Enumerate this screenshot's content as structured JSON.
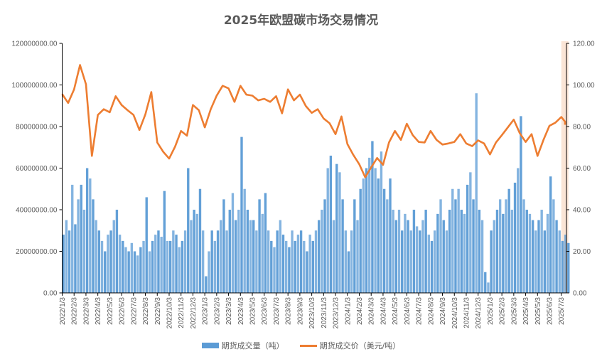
{
  "chart_data": {
    "type": "bar+line",
    "title": "2025年欧盟碳市场交易情况",
    "colors": {
      "volume": "#5b9bd5",
      "price": "#ed7d31",
      "highlight": "#fbe5d6"
    },
    "left_axis": {
      "min": 0,
      "max": 120000000,
      "ticks": [
        "0.00",
        "20000000.00",
        "40000000.00",
        "60000000.00",
        "80000000.00",
        "100000000.00",
        "120000000.00"
      ]
    },
    "right_axis": {
      "min": 0,
      "max": 120,
      "ticks": [
        "0.00",
        "20.00",
        "40.00",
        "60.00",
        "80.00",
        "100.00",
        "120.00"
      ]
    },
    "x_ticks": [
      "2022/1/3",
      "2022/2/3",
      "2022/3/3",
      "2022/4/3",
      "2022/5/3",
      "2022/6/3",
      "2022/7/3",
      "2022/8/3",
      "2022/9/3",
      "2022/10/3",
      "2022/11/3",
      "2022/12/3",
      "2023/1/3",
      "2023/2/3",
      "2023/3/3",
      "2023/4/3",
      "2023/5/3",
      "2023/6/3",
      "2023/7/3",
      "2023/8/3",
      "2023/9/3",
      "2023/10/3",
      "2023/11/3",
      "2023/12/3",
      "2024/1/3",
      "2024/2/3",
      "2024/3/3",
      "2024/4/3",
      "2024/5/3",
      "2024/6/3",
      "2024/7/3",
      "2024/8/3",
      "2024/9/3",
      "2024/10/3",
      "2024/11/3",
      "2024/12/3",
      "2025/1/3",
      "2025/2/3",
      "2025/3/3",
      "2025/4/3",
      "2025/5/3",
      "2025/6/3",
      "2025/7/3"
    ],
    "highlight_range_months": [
      42.0,
      42.6
    ],
    "series": [
      {
        "name": "期货成交量（吨）",
        "type": "bar",
        "axis": "left",
        "points_per_month": 4,
        "unit_multiplier": 1000000,
        "values": [
          28,
          35,
          30,
          52,
          33,
          45,
          52,
          40,
          60,
          55,
          45,
          35,
          30,
          25,
          20,
          28,
          30,
          35,
          40,
          28,
          25,
          22,
          20,
          24,
          20,
          18,
          22,
          25,
          46,
          20,
          25,
          28,
          30,
          27,
          49,
          25,
          25,
          30,
          28,
          22,
          25,
          30,
          60,
          35,
          40,
          38,
          50,
          30,
          8,
          20,
          30,
          25,
          30,
          35,
          45,
          30,
          40,
          48,
          35,
          40,
          75,
          50,
          40,
          35,
          35,
          30,
          45,
          38,
          48,
          30,
          25,
          22,
          30,
          35,
          28,
          25,
          22,
          30,
          25,
          28,
          30,
          25,
          20,
          28,
          25,
          30,
          35,
          40,
          45,
          60,
          66,
          35,
          62,
          58,
          45,
          30,
          20,
          30,
          45,
          35,
          50,
          55,
          60,
          65,
          73,
          60,
          55,
          68,
          50,
          45,
          55,
          40,
          35,
          40,
          30,
          38,
          35,
          30,
          40,
          32,
          30,
          35,
          40,
          28,
          25,
          30,
          38,
          45,
          35,
          30,
          40,
          50,
          45,
          50,
          40,
          38,
          52,
          58,
          45,
          96,
          40,
          35,
          10,
          5,
          30,
          35,
          40,
          45,
          38,
          45,
          50,
          40,
          53,
          60,
          85,
          45,
          40,
          38,
          35,
          30,
          35,
          40,
          30,
          38,
          56,
          45,
          35,
          30,
          25,
          28,
          24
        ]
      },
      {
        "name": "期货成交价（美元/吨）",
        "type": "line",
        "axis": "right",
        "points_per_month": 2,
        "values": [
          96,
          91,
          98,
          110,
          100,
          66,
          86,
          88,
          87,
          95,
          90,
          88,
          86,
          78,
          86,
          97,
          72,
          68,
          65,
          70,
          78,
          76,
          90,
          88,
          80,
          88,
          95,
          100,
          98,
          92,
          100,
          95,
          95,
          93,
          93,
          92,
          95,
          86,
          98,
          93,
          95,
          90,
          87,
          88,
          84,
          82,
          76,
          85,
          72,
          66,
          62,
          56,
          60,
          65,
          62,
          72,
          78,
          74,
          81,
          76,
          73,
          72,
          78,
          74,
          71,
          72,
          73,
          76,
          72,
          71,
          73,
          72,
          67,
          72,
          76,
          80,
          83,
          77,
          73,
          76,
          66,
          74,
          80,
          82,
          85,
          82,
          81
        ]
      }
    ],
    "legend": {
      "position": "bottom"
    }
  }
}
